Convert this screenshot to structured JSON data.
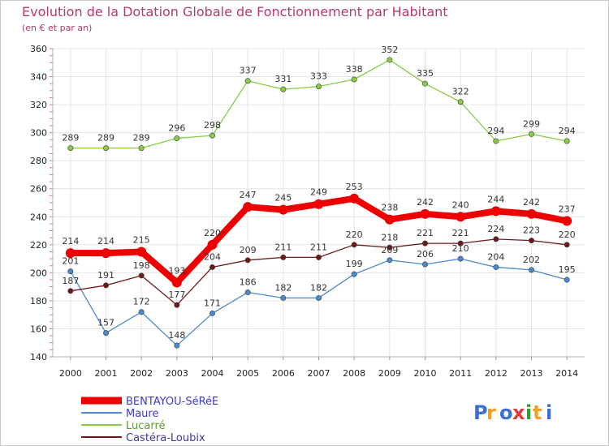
{
  "chart_data": {
    "type": "line",
    "title": "Evolution de la Dotation Globale de Fonctionnement par Habitant",
    "subtitle": "(en € et par an)",
    "xlabel": "",
    "ylabel": "",
    "ylim": [
      140,
      360
    ],
    "yticks": [
      140,
      160,
      180,
      200,
      220,
      240,
      260,
      280,
      300,
      320,
      340,
      360
    ],
    "grid": true,
    "legend_position": "bottom-left",
    "categories": [
      "2000",
      "2001",
      "2002",
      "2003",
      "2004",
      "2005",
      "2006",
      "2007",
      "2008",
      "2009",
      "2010",
      "2011",
      "2012",
      "2013",
      "2014"
    ],
    "series": [
      {
        "name": "BENTAYOU-SéRéE",
        "color": "#ee0000",
        "values": [
          214,
          214,
          215,
          193,
          220,
          247,
          245,
          249,
          253,
          238,
          242,
          240,
          244,
          242,
          237
        ]
      },
      {
        "name": "Maure",
        "color": "#4a8ac8",
        "values": [
          201,
          157,
          172,
          148,
          171,
          186,
          182,
          182,
          199,
          209,
          206,
          210,
          204,
          202,
          195
        ]
      },
      {
        "name": "Lucarré",
        "color": "#88cc44",
        "values": [
          289,
          289,
          289,
          296,
          298,
          337,
          331,
          333,
          338,
          352,
          335,
          322,
          294,
          299,
          294
        ]
      },
      {
        "name": "Castéra-Loubix",
        "color": "#6b1a1a",
        "values": [
          187,
          191,
          198,
          177,
          204,
          209,
          211,
          211,
          220,
          218,
          221,
          221,
          224,
          223,
          220
        ]
      }
    ]
  },
  "logo": {
    "text": "Proxiti",
    "colors": [
      "#3b6fd6",
      "#f0a020",
      "#3b6fd6",
      "#e03a3a",
      "#2aa02a",
      "#f0a020",
      "#3b6fd6"
    ]
  }
}
